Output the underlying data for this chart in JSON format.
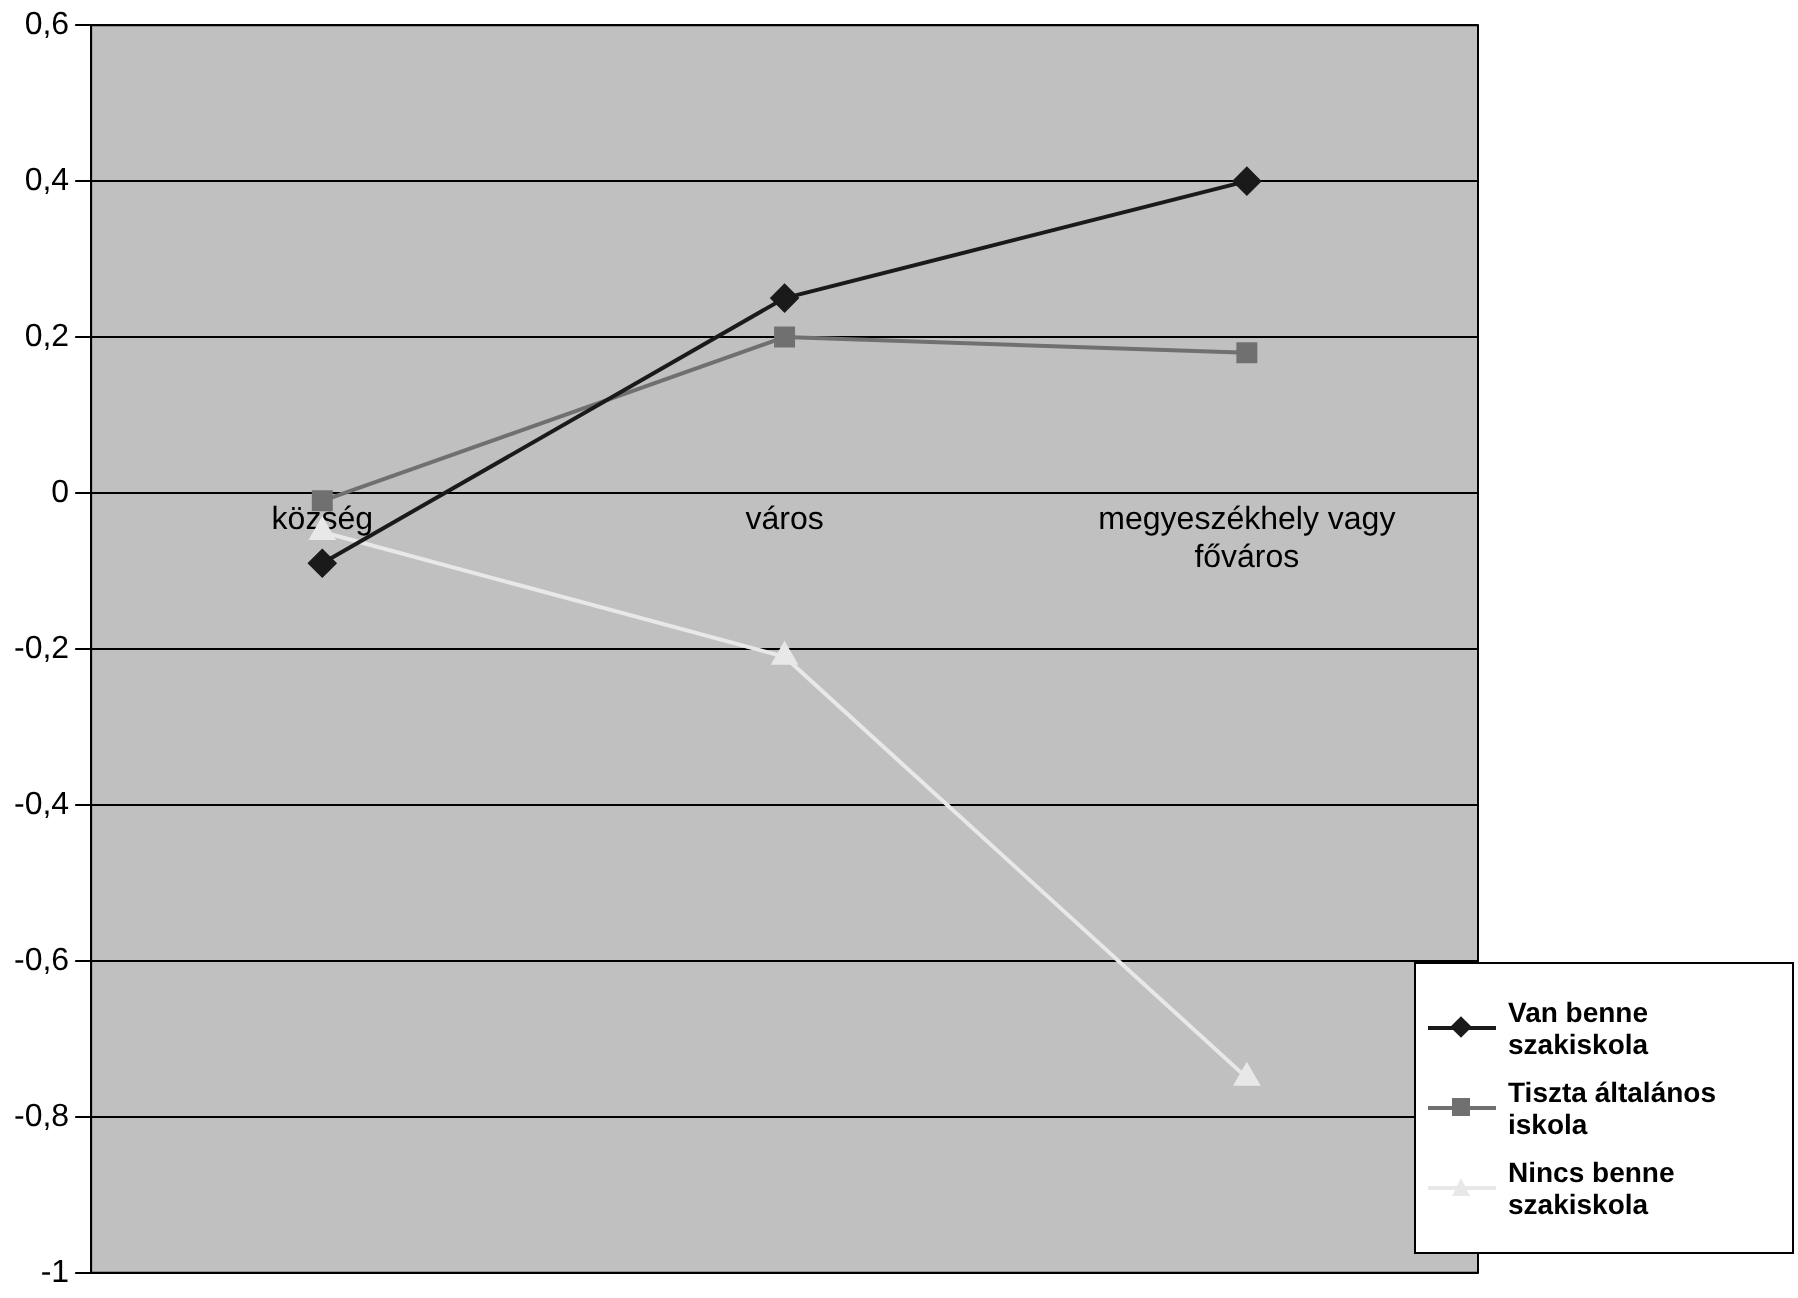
{
  "chart_data": {
    "type": "line",
    "categories": [
      "község",
      "város",
      "megyeszékhely vagy főváros"
    ],
    "series": [
      {
        "name": "Van benne szakiskola",
        "color": "#1a1a1a",
        "marker": "diamond",
        "values": [
          -0.09,
          0.25,
          0.4
        ]
      },
      {
        "name": "Tiszta általános iskola",
        "color": "#707070",
        "marker": "square",
        "values": [
          -0.01,
          0.2,
          0.18
        ]
      },
      {
        "name": "Nincs benne szakiskola",
        "color": "#e8e8e8",
        "marker": "triangle",
        "values": [
          -0.05,
          -0.21,
          -0.75
        ]
      }
    ],
    "ylim": [
      -1,
      0.6
    ],
    "yticks": [
      {
        "value": -1,
        "label": "-1"
      },
      {
        "value": -0.8,
        "label": "-0,8"
      },
      {
        "value": -0.6,
        "label": "-0,6"
      },
      {
        "value": -0.4,
        "label": "-0,4"
      },
      {
        "value": -0.2,
        "label": "-0,2"
      },
      {
        "value": 0,
        "label": "0"
      },
      {
        "value": 0.2,
        "label": "0,2"
      },
      {
        "value": 0.4,
        "label": "0,4"
      },
      {
        "value": 0.6,
        "label": "0,6"
      }
    ],
    "grid": "y",
    "legend": "bottom right",
    "line_style": "solid"
  }
}
